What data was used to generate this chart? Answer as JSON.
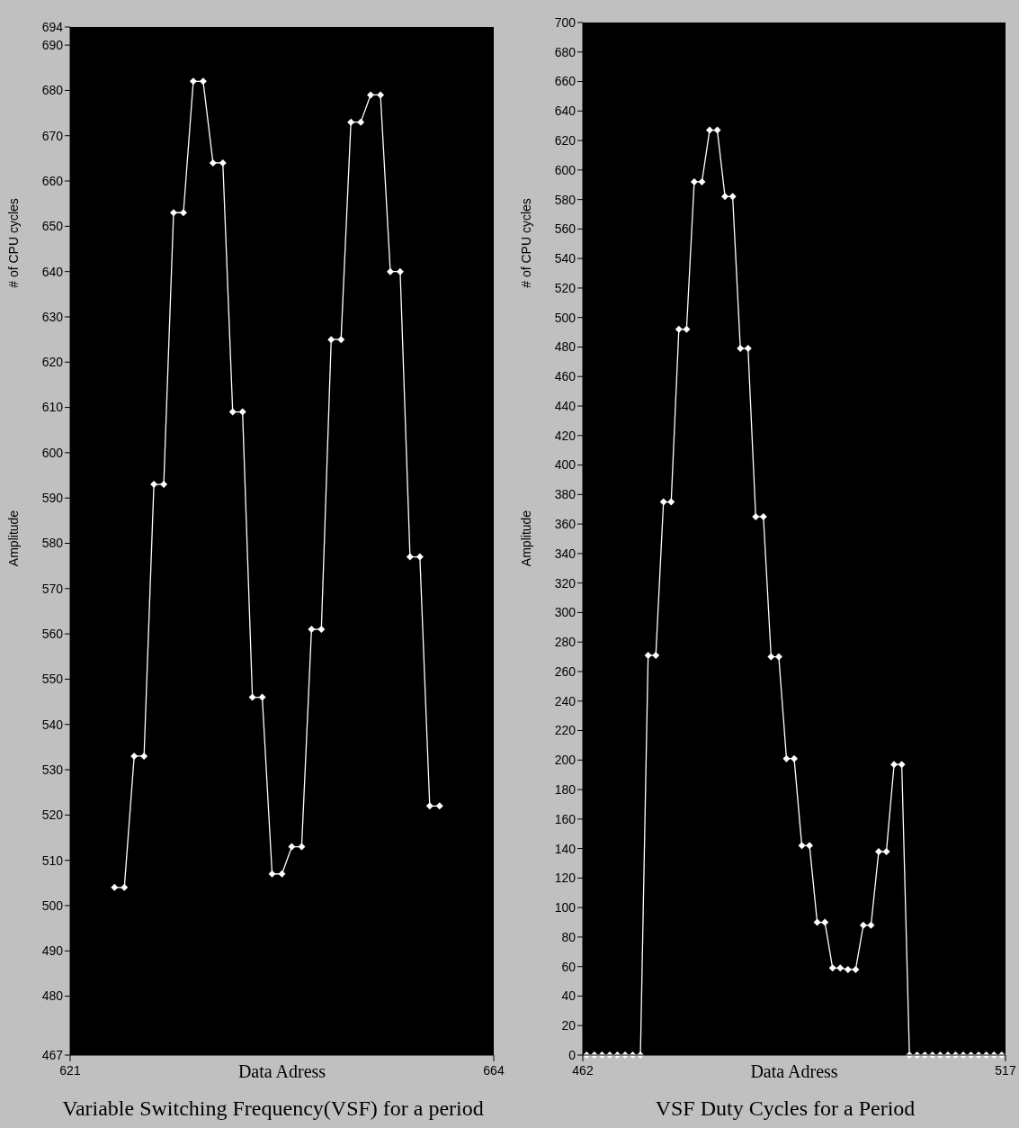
{
  "chart_data": [
    {
      "type": "line",
      "title": "Variable Switching Frequency(VSF) for a period",
      "xlabel": "Data Adress",
      "ylabel": "# of CPU cycles",
      "annotations": [
        "Amplitude"
      ],
      "xlim": [
        621,
        664
      ],
      "xticks": [
        621,
        664
      ],
      "ylim": [
        467,
        694
      ],
      "yticks": [
        467,
        480,
        490,
        500,
        510,
        520,
        530,
        540,
        550,
        560,
        570,
        580,
        590,
        600,
        610,
        620,
        630,
        640,
        650,
        660,
        670,
        680,
        690,
        694
      ],
      "grid": false,
      "marker": "diamond",
      "line_style": "solid",
      "series": [
        {
          "color": "#ffffff",
          "x": [
            625.5,
            626.5,
            627.5,
            628.5,
            629.5,
            630.5,
            631.5,
            632.5,
            633.5,
            634.5,
            635.5,
            636.5,
            637.5,
            638.5,
            639.5,
            640.5,
            641.5,
            642.5,
            643.5,
            644.5,
            645.5,
            646.5,
            647.5,
            648.5,
            649.5,
            650.5,
            651.5,
            652.5,
            653.5,
            654.5,
            655.5,
            656.5,
            657.5,
            658.5
          ],
          "values": [
            504,
            504,
            533,
            533,
            593,
            593,
            653,
            653,
            682,
            682,
            664,
            664,
            609,
            609,
            546,
            546,
            507,
            507,
            513,
            513,
            561,
            561,
            625,
            625,
            673,
            673,
            679,
            679,
            640,
            640,
            577,
            577,
            522,
            522
          ]
        }
      ]
    },
    {
      "type": "line",
      "title": "VSF Duty Cycles for a Period",
      "xlabel": "Data Adress",
      "ylabel": "# of CPU cycles",
      "annotations": [
        "Amplitude"
      ],
      "xlim": [
        462,
        517
      ],
      "xticks": [
        462,
        517
      ],
      "ylim": [
        0,
        700
      ],
      "yticks": [
        0,
        20,
        40,
        60,
        80,
        100,
        120,
        140,
        160,
        180,
        200,
        220,
        240,
        260,
        280,
        300,
        320,
        340,
        360,
        380,
        400,
        420,
        440,
        460,
        480,
        500,
        520,
        540,
        560,
        580,
        600,
        620,
        640,
        660,
        680,
        700
      ],
      "grid": false,
      "marker": "diamond",
      "line_style": "solid",
      "series": [
        {
          "color": "#ffffff",
          "x": [
            462.5,
            463.5,
            464.5,
            465.5,
            466.5,
            467.5,
            468.5,
            469.5,
            470.5,
            471.5,
            472.5,
            473.5,
            474.5,
            475.5,
            476.5,
            477.5,
            478.5,
            479.5,
            480.5,
            481.5,
            482.5,
            483.5,
            484.5,
            485.5,
            486.5,
            487.5,
            488.5,
            489.5,
            490.5,
            491.5,
            492.5,
            493.5,
            494.5,
            495.5,
            496.5,
            497.5,
            498.5,
            499.5,
            500.5,
            501.5,
            502.5,
            503.5,
            504.5,
            505.5,
            506.5,
            507.5,
            508.5,
            509.5,
            510.5,
            511.5,
            512.5,
            513.5,
            514.5,
            515.5,
            516.5
          ],
          "values": [
            0,
            0,
            0,
            0,
            0,
            0,
            0,
            0,
            271,
            271,
            375,
            375,
            492,
            492,
            592,
            592,
            627,
            627,
            582,
            582,
            479,
            479,
            365,
            365,
            270,
            270,
            201,
            201,
            142,
            142,
            90,
            90,
            59,
            59,
            58,
            58,
            88,
            88,
            138,
            138,
            197,
            197,
            0,
            0,
            0,
            0,
            0,
            0,
            0,
            0,
            0,
            0,
            0,
            0,
            0
          ]
        }
      ]
    }
  ]
}
